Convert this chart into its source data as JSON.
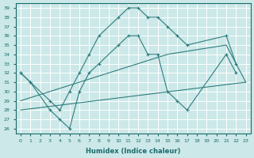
{
  "xlabel": "Humidex (Indice chaleur)",
  "background_color": "#cce8e8",
  "grid_color": "#ffffff",
  "line_color": "#2e7d7d",
  "xlim": [
    -0.5,
    23.5
  ],
  "ylim": [
    25.5,
    39.5
  ],
  "xticks": [
    0,
    1,
    2,
    3,
    4,
    5,
    6,
    7,
    8,
    9,
    10,
    11,
    12,
    13,
    14,
    15,
    16,
    17,
    18,
    19,
    20,
    21,
    22,
    23
  ],
  "yticks": [
    26,
    27,
    28,
    29,
    30,
    31,
    32,
    33,
    34,
    35,
    36,
    37,
    38,
    39
  ],
  "series": [
    {
      "x": [
        0,
        1,
        3,
        4,
        5,
        6,
        7,
        8,
        10,
        11,
        12,
        13,
        14,
        15,
        16,
        17,
        21,
        22
      ],
      "y": [
        32,
        31,
        29,
        28,
        30,
        32,
        34,
        36,
        38,
        39,
        39,
        38,
        38,
        37,
        36,
        35,
        36,
        33
      ],
      "markers": true
    },
    {
      "x": [
        0,
        1,
        3,
        4,
        5,
        6,
        7,
        8,
        10,
        11,
        12,
        13,
        14,
        15,
        16,
        17,
        21,
        22
      ],
      "y": [
        32,
        31,
        28,
        27,
        26,
        30,
        32,
        33,
        35,
        36,
        36,
        34,
        34,
        30,
        29,
        28,
        34,
        32
      ],
      "markers": true
    },
    {
      "x": [
        0,
        15,
        21,
        23
      ],
      "y": [
        29,
        34,
        35,
        31
      ],
      "markers": false
    },
    {
      "x": [
        0,
        23
      ],
      "y": [
        28,
        31
      ],
      "markers": false
    }
  ]
}
